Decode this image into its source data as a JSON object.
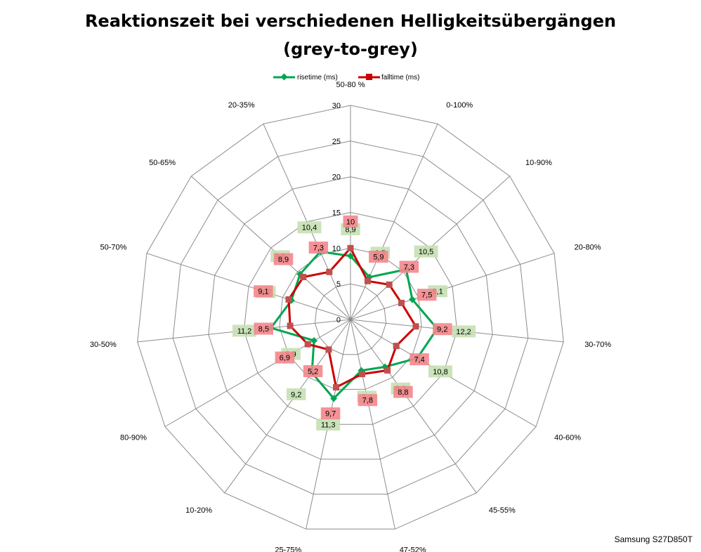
{
  "chart_data": {
    "type": "radar",
    "title_line1": "Reaktionszeit bei verschiedenen Helligkeitsübergängen",
    "title_line2": "(grey-to-grey)",
    "categories": [
      "50-80 %",
      "0-100%",
      "10-90%",
      "20-80%",
      "30-70%",
      "40-60%",
      "45-55%",
      "47-52%",
      "25-75%",
      "10-20%",
      "80-90%",
      "30-50%",
      "50-70%",
      "50-65%",
      "20-35%"
    ],
    "radial_ticks": [
      "0",
      "5",
      "10",
      "15",
      "20",
      "25",
      "30"
    ],
    "rmax": 30,
    "legend_position": "top",
    "series": [
      {
        "name": "risetime (ms)",
        "color": "#00A651",
        "label_bg": "#C5E0B4",
        "marker": "diamond",
        "values": [
          8.9,
          6.5,
          10.5,
          9.1,
          12.2,
          10.8,
          8.2,
          7.3,
          11.3,
          9.2,
          5.9,
          11.2,
          8.7,
          9.5,
          10.4
        ],
        "labels": [
          "8,9",
          "6,5",
          "10,5",
          "9,1",
          "12,2",
          "10,8",
          "8,2",
          "7,3",
          "11,3",
          "9,2",
          "5,9",
          "11,2",
          "8,7",
          "9,5",
          "10,4"
        ]
      },
      {
        "name": "falltime (ms)",
        "color": "#CC0000",
        "label_bg": "#F4868C",
        "marker": "square",
        "values": [
          10,
          5.9,
          7.3,
          7.5,
          9.2,
          7.4,
          8.8,
          7.8,
          9.7,
          5.2,
          6.9,
          8.5,
          9.1,
          8.9,
          7.3
        ],
        "labels": [
          "10",
          "5,9",
          "7,3",
          "7,5",
          "9,2",
          "7,4",
          "8,8",
          "7,8",
          "9,7",
          "5,2",
          "6,9",
          "8,5",
          "9,1",
          "8,9",
          "7,3"
        ]
      }
    ],
    "footnote": "Samsung S27D850T"
  }
}
